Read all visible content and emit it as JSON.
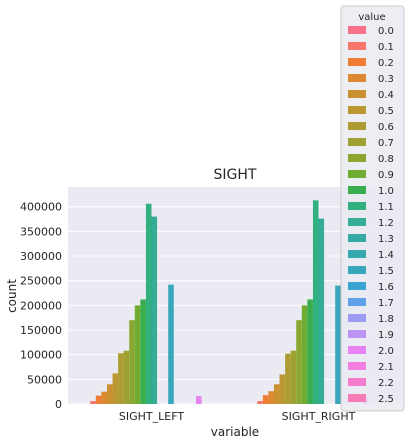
{
  "chart_data": {
    "type": "bar",
    "title": "SIGHT",
    "xlabel": "variable",
    "ylabel": "count",
    "ylim": [
      0,
      440000
    ],
    "yticks": [
      0,
      50000,
      100000,
      150000,
      200000,
      250000,
      300000,
      350000,
      400000
    ],
    "grid": true,
    "legend_title": "value",
    "legend_position": "top-right",
    "categories": [
      "SIGHT_LEFT",
      "SIGHT_RIGHT"
    ],
    "series": [
      {
        "name": "0.0",
        "color": "#f77189",
        "values": [
          0,
          0
        ]
      },
      {
        "name": "0.1",
        "color": "#f7766a",
        "values": [
          6000,
          6000
        ]
      },
      {
        "name": "0.2",
        "color": "#f17c33",
        "values": [
          17000,
          18000
        ]
      },
      {
        "name": "0.3",
        "color": "#dc8932",
        "values": [
          25000,
          26000
        ]
      },
      {
        "name": "0.4",
        "color": "#ca9131",
        "values": [
          40000,
          40000
        ]
      },
      {
        "name": "0.5",
        "color": "#bb9832",
        "values": [
          62000,
          60000
        ]
      },
      {
        "name": "0.6",
        "color": "#ad9c31",
        "values": [
          103000,
          102000
        ]
      },
      {
        "name": "0.7",
        "color": "#9ea131",
        "values": [
          108000,
          108000
        ]
      },
      {
        "name": "0.8",
        "color": "#8ca731",
        "values": [
          170000,
          170000
        ]
      },
      {
        "name": "0.9",
        "color": "#6fac31",
        "values": [
          200000,
          200000
        ]
      },
      {
        "name": "1.0",
        "color": "#3aae4f",
        "values": [
          212000,
          212000
        ]
      },
      {
        "name": "1.1",
        "color": "#33b07f",
        "values": [
          406000,
          413000
        ]
      },
      {
        "name": "1.2",
        "color": "#35ac95",
        "values": [
          380000,
          376000
        ]
      },
      {
        "name": "1.3",
        "color": "#36aaa2",
        "values": [
          0,
          0
        ]
      },
      {
        "name": "1.4",
        "color": "#37a8ae",
        "values": [
          0,
          0
        ]
      },
      {
        "name": "1.5",
        "color": "#38a7bb",
        "values": [
          242000,
          240000
        ]
      },
      {
        "name": "1.6",
        "color": "#3ba3cf",
        "values": [
          0,
          0
        ]
      },
      {
        "name": "1.7",
        "color": "#61a0ea",
        "values": [
          0,
          0
        ]
      },
      {
        "name": "1.8",
        "color": "#9e9bf4",
        "values": [
          0,
          0
        ]
      },
      {
        "name": "1.9",
        "color": "#bb94f4",
        "values": [
          0,
          0
        ]
      },
      {
        "name": "2.0",
        "color": "#e883f4",
        "values": [
          16000,
          15000
        ]
      },
      {
        "name": "2.1",
        "color": "#f37fe0",
        "values": [
          0,
          0
        ]
      },
      {
        "name": "2.2",
        "color": "#f57dce",
        "values": [
          0,
          0
        ]
      },
      {
        "name": "2.5",
        "color": "#f67bb6",
        "values": [
          0,
          0
        ]
      }
    ]
  }
}
